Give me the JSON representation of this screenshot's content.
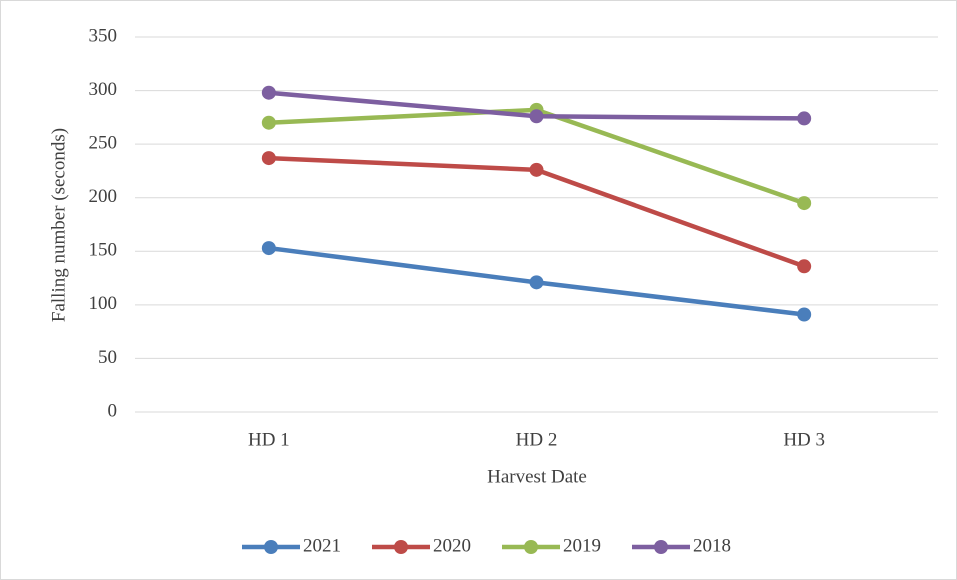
{
  "chart_data": {
    "type": "line",
    "x_label": "Harvest Date",
    "y_label": "Falling number (seconds)",
    "categories": [
      "HD 1",
      "HD 2",
      "HD 3"
    ],
    "series": [
      {
        "name": "2021",
        "color": "#4a7ebb",
        "values": [
          153,
          121,
          91
        ]
      },
      {
        "name": "2020",
        "color": "#be4b48",
        "values": [
          237,
          226,
          136
        ]
      },
      {
        "name": "2019",
        "color": "#98b954",
        "values": [
          270,
          282,
          195
        ]
      },
      {
        "name": "2018",
        "color": "#7d5fa0",
        "values": [
          298,
          276,
          274
        ]
      }
    ],
    "ylim": [
      0,
      350
    ],
    "yticks": [
      0,
      50,
      100,
      150,
      200,
      250,
      300,
      350
    ],
    "grid": true,
    "legend": "bottom"
  }
}
